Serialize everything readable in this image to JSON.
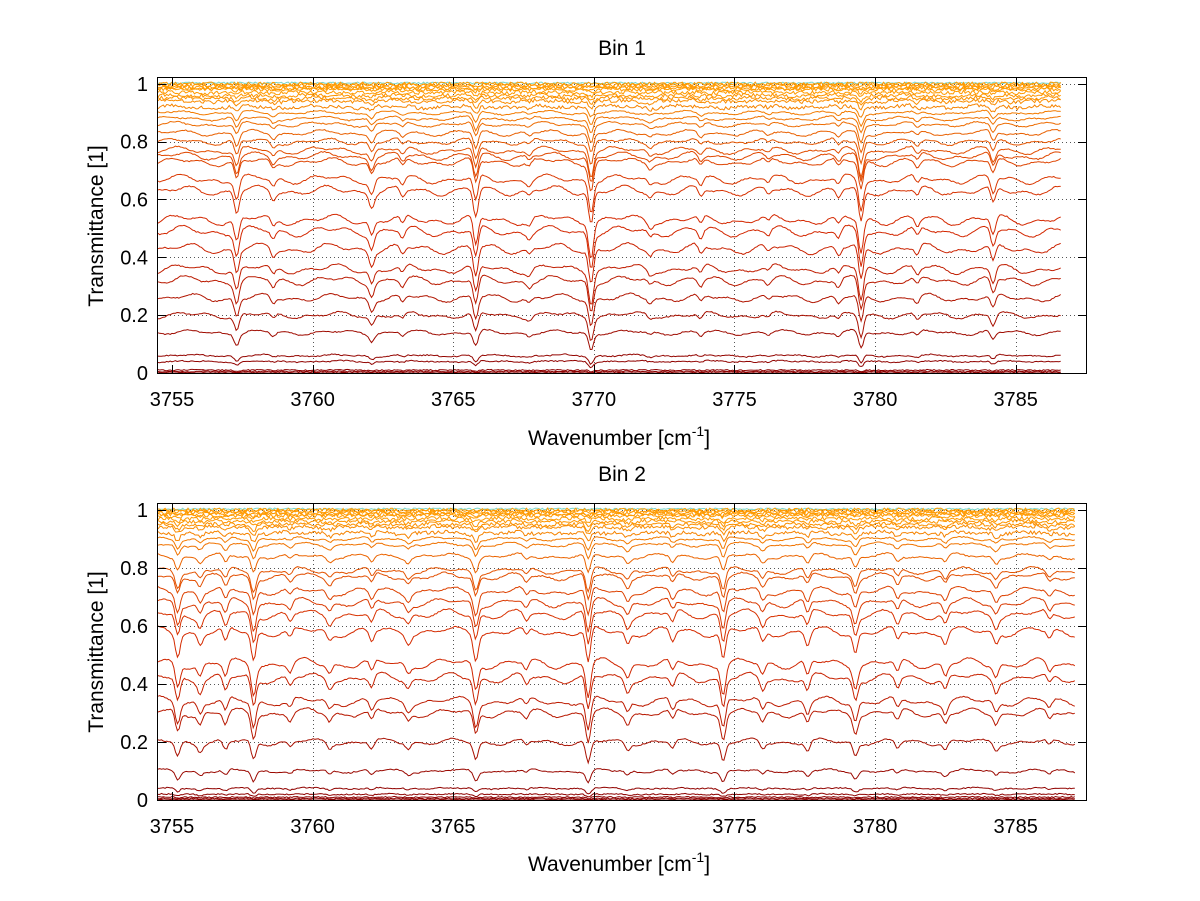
{
  "chart_data": [
    {
      "type": "line",
      "title": "Bin 1",
      "xlabel": "Wavenumber [cm",
      "xlabel_sup": "-1",
      "xlabel_end": "]",
      "ylabel": "Transmittance [1]",
      "xlim": [
        3754.5,
        3787.5
      ],
      "ylim": [
        0,
        1.02
      ],
      "x_data_range": [
        3754.5,
        3786.6
      ],
      "xticks": [
        3755,
        3760,
        3765,
        3770,
        3775,
        3780,
        3785
      ],
      "yticks": [
        0,
        0.2,
        0.4,
        0.6,
        0.8,
        1
      ],
      "ytick_labels": [
        "0",
        "0.2",
        "0.4",
        "0.6",
        "0.8",
        "1"
      ],
      "grid": true,
      "line_levels": [
        0.0,
        0.005,
        0.01,
        0.04,
        0.06,
        0.14,
        0.2,
        0.26,
        0.32,
        0.36,
        0.43,
        0.49,
        0.53,
        0.63,
        0.67,
        0.73,
        0.75,
        0.77,
        0.8,
        0.83,
        0.86,
        0.88,
        0.9,
        0.92,
        0.94,
        0.95,
        0.96,
        0.97,
        0.98,
        0.985,
        0.99,
        0.995,
        1.0
      ],
      "absorption_lines": [
        {
          "x": 3757.3,
          "depth": 0.08
        },
        {
          "x": 3758.6,
          "depth": 0.03
        },
        {
          "x": 3762.1,
          "depth": 0.05
        },
        {
          "x": 3763.2,
          "depth": 0.03
        },
        {
          "x": 3765.8,
          "depth": 0.1
        },
        {
          "x": 3767.7,
          "depth": 0.02
        },
        {
          "x": 3769.9,
          "depth": 0.12
        },
        {
          "x": 3772.0,
          "depth": 0.02
        },
        {
          "x": 3773.8,
          "depth": 0.03
        },
        {
          "x": 3776.2,
          "depth": 0.02
        },
        {
          "x": 3778.7,
          "depth": 0.03
        },
        {
          "x": 3779.5,
          "depth": 0.12
        },
        {
          "x": 3781.5,
          "depth": 0.03
        },
        {
          "x": 3784.2,
          "depth": 0.06
        }
      ]
    },
    {
      "type": "line",
      "title": "Bin 2",
      "xlabel": "Wavenumber [cm",
      "xlabel_sup": "-1",
      "xlabel_end": "]",
      "ylabel": "Transmittance [1]",
      "xlim": [
        3754.5,
        3787.5
      ],
      "ylim": [
        0,
        1.02
      ],
      "x_data_range": [
        3754.5,
        3787.1
      ],
      "xticks": [
        3755,
        3760,
        3765,
        3770,
        3775,
        3780,
        3785
      ],
      "yticks": [
        0,
        0.2,
        0.4,
        0.6,
        0.8,
        1
      ],
      "ytick_labels": [
        "0",
        "0.2",
        "0.4",
        "0.6",
        "0.8",
        "1"
      ],
      "grid": true,
      "line_levels": [
        0.0,
        0.005,
        0.01,
        0.02,
        0.04,
        0.1,
        0.2,
        0.3,
        0.34,
        0.42,
        0.47,
        0.58,
        0.64,
        0.68,
        0.72,
        0.77,
        0.79,
        0.84,
        0.88,
        0.9,
        0.92,
        0.94,
        0.95,
        0.96,
        0.97,
        0.98,
        0.985,
        0.99,
        0.995,
        1.0
      ],
      "absorption_lines": [
        {
          "x": 3755.2,
          "depth": 0.08
        },
        {
          "x": 3756.0,
          "depth": 0.04
        },
        {
          "x": 3756.9,
          "depth": 0.05
        },
        {
          "x": 3757.9,
          "depth": 0.1
        },
        {
          "x": 3759.2,
          "depth": 0.03
        },
        {
          "x": 3760.6,
          "depth": 0.03
        },
        {
          "x": 3762.1,
          "depth": 0.04
        },
        {
          "x": 3763.4,
          "depth": 0.03
        },
        {
          "x": 3765.8,
          "depth": 0.09
        },
        {
          "x": 3767.6,
          "depth": 0.03
        },
        {
          "x": 3769.8,
          "depth": 0.12
        },
        {
          "x": 3771.2,
          "depth": 0.04
        },
        {
          "x": 3772.8,
          "depth": 0.04
        },
        {
          "x": 3774.6,
          "depth": 0.1
        },
        {
          "x": 3776.0,
          "depth": 0.04
        },
        {
          "x": 3777.6,
          "depth": 0.05
        },
        {
          "x": 3779.3,
          "depth": 0.07
        },
        {
          "x": 3780.8,
          "depth": 0.04
        },
        {
          "x": 3782.5,
          "depth": 0.04
        },
        {
          "x": 3784.3,
          "depth": 0.04
        },
        {
          "x": 3786.2,
          "depth": 0.03
        }
      ]
    }
  ],
  "colors": {
    "low": "#8b0000",
    "mid": "#d42800",
    "high": "#ff9a00",
    "top": "#22bbaa"
  }
}
